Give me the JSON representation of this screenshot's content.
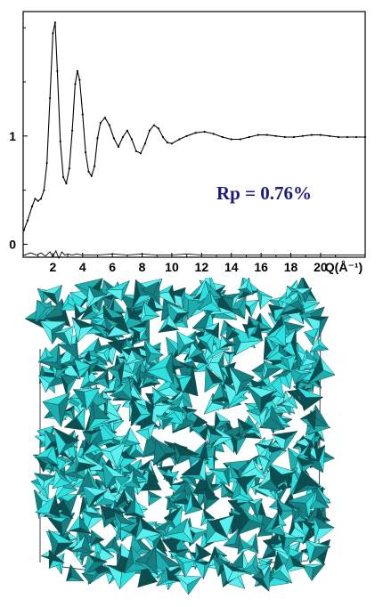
{
  "chart_data": {
    "type": "line",
    "title": "",
    "xlabel": "Q(Å⁻¹)",
    "ylabel": "",
    "xlim": [
      0,
      23
    ],
    "ylim": [
      -0.12,
      2.15
    ],
    "x_ticks": [
      2,
      4,
      6,
      8,
      10,
      12,
      14,
      16,
      18,
      20
    ],
    "y_ticks": [
      0,
      1
    ],
    "grid": false,
    "annotation": "Rp = 0.76%",
    "series": [
      {
        "line_style": "solid",
        "marker": "dots",
        "color": "#000000",
        "x": [
          0.05,
          0.3,
          0.6,
          0.8,
          1.0,
          1.2,
          1.4,
          1.6,
          1.8,
          2.0,
          2.15,
          2.3,
          2.5,
          2.7,
          2.9,
          3.1,
          3.3,
          3.5,
          3.65,
          3.8,
          4.0,
          4.2,
          4.4,
          4.6,
          4.8,
          5.0,
          5.2,
          5.5,
          5.8,
          6.1,
          6.4,
          6.7,
          7.0,
          7.3,
          7.6,
          7.9,
          8.2,
          8.5,
          8.8,
          9.1,
          9.4,
          9.7,
          10.0,
          10.5,
          11.0,
          11.6,
          12.2,
          12.8,
          13.4,
          14.0,
          14.6,
          15.2,
          15.8,
          16.4,
          17.0,
          17.6,
          18.2,
          18.8,
          19.4,
          20.0,
          20.6,
          21.2,
          21.8,
          22.4,
          23.0
        ],
        "y": [
          0.13,
          0.22,
          0.35,
          0.42,
          0.4,
          0.42,
          0.5,
          0.75,
          1.35,
          1.95,
          2.05,
          1.6,
          0.95,
          0.62,
          0.56,
          0.7,
          1.05,
          1.48,
          1.6,
          1.52,
          1.2,
          0.85,
          0.67,
          0.63,
          0.72,
          0.98,
          1.12,
          1.17,
          1.1,
          0.98,
          0.9,
          0.99,
          1.05,
          0.97,
          0.86,
          0.84,
          0.93,
          1.05,
          1.1,
          1.07,
          0.99,
          0.94,
          0.93,
          0.97,
          1.0,
          1.03,
          1.04,
          1.02,
          0.99,
          0.97,
          0.97,
          0.99,
          1.01,
          1.01,
          1.0,
          0.99,
          0.99,
          1.0,
          1.01,
          1.01,
          1.0,
          0.99,
          0.99,
          0.99,
          0.99
        ]
      },
      {
        "line_style": "solid",
        "marker": "none",
        "color": "#000000",
        "x": [
          0.1,
          0.5,
          0.9,
          1.2,
          1.5,
          1.8,
          2.0,
          2.2,
          2.4,
          2.6,
          2.8,
          3.0,
          3.3,
          3.6,
          4.0,
          5.0,
          6.0,
          7.0,
          8.0,
          9.0,
          10.0,
          11.0,
          12.0,
          13.0,
          14.0,
          15.0,
          16.0,
          17.0,
          18.0,
          19.0,
          20.0,
          21.0,
          22.0,
          23.0
        ],
        "y": [
          -0.1,
          -0.08,
          -0.1,
          -0.08,
          -0.11,
          -0.07,
          -0.12,
          -0.06,
          -0.13,
          -0.07,
          -0.1,
          -0.09,
          -0.1,
          -0.09,
          -0.1,
          -0.1,
          -0.09,
          -0.1,
          -0.09,
          -0.1,
          -0.1,
          -0.09,
          -0.1,
          -0.1,
          -0.1,
          -0.1,
          -0.1,
          -0.1,
          -0.1,
          -0.1,
          -0.1,
          -0.1,
          -0.1,
          -0.1
        ]
      }
    ]
  },
  "model": {
    "figure": "tetrahedral network box",
    "face_colors": [
      "#2fe0e0",
      "#1faeb0",
      "#157f82",
      "#0c4f52",
      "#5af0f0"
    ],
    "edge_color": "#0a3a3c"
  }
}
